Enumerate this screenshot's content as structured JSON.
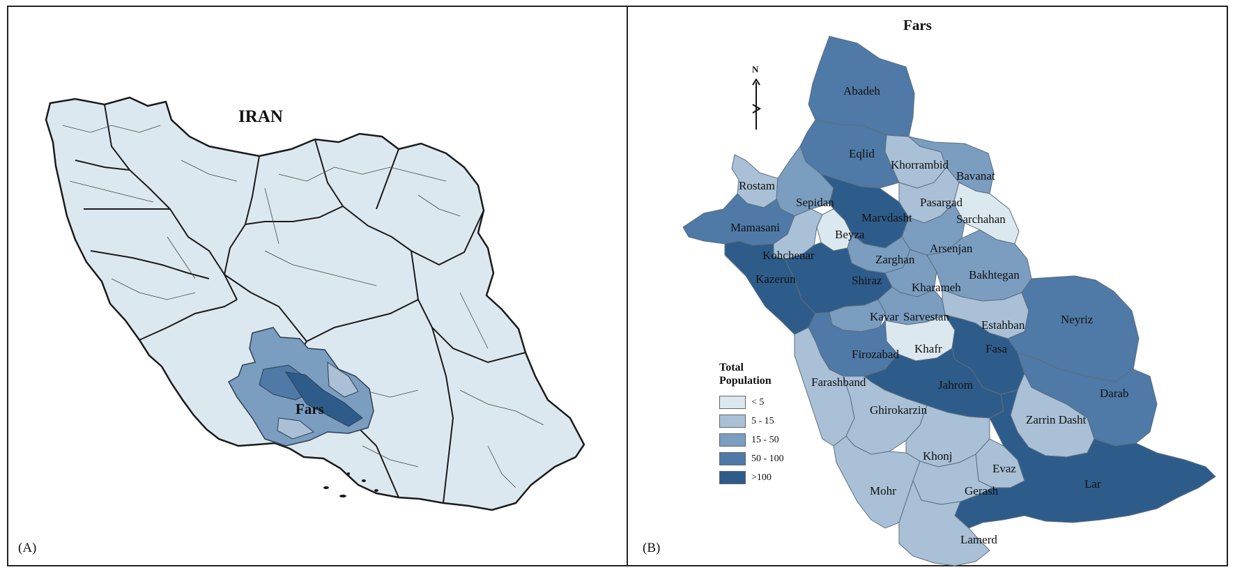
{
  "panel_a": {
    "label": "(A)",
    "title": "IRAN",
    "highlight_label": "Fars"
  },
  "panel_b": {
    "label": "(B)",
    "title": "Fars",
    "north_arrow": "north-arrow-icon"
  },
  "colors": {
    "pale": "#dce8ef",
    "light": "#a9c0d6",
    "mid": "#7a9dc0",
    "dark": "#4f79a6",
    "darkest": "#2e5c8a",
    "border": "#5b6f80"
  },
  "legend": {
    "title_line1": "Total",
    "title_line2": "Population",
    "items": [
      {
        "label": "< 5",
        "color": "#dce8ef"
      },
      {
        "label": "5 - 15",
        "color": "#a9c0d6"
      },
      {
        "label": "15 - 50",
        "color": "#7a9dc0"
      },
      {
        "label": "50 - 100",
        "color": "#4f79a6"
      },
      {
        "label": ">100",
        "color": "#2e5c8a"
      }
    ]
  },
  "districts": [
    {
      "name": "Abadeh",
      "class": 3
    },
    {
      "name": "Eqlid",
      "class": 3
    },
    {
      "name": "Khorrambid",
      "class": 1
    },
    {
      "name": "Bavanat",
      "class": 2
    },
    {
      "name": "Rostam",
      "class": 1
    },
    {
      "name": "Sepidan",
      "class": 2
    },
    {
      "name": "Pasargad",
      "class": 1
    },
    {
      "name": "Sarchahan",
      "class": 0
    },
    {
      "name": "Marvdasht",
      "class": 4
    },
    {
      "name": "Mamasani",
      "class": 3
    },
    {
      "name": "Beyza",
      "class": 0
    },
    {
      "name": "Arsenjan",
      "class": 2
    },
    {
      "name": "Kohchenar",
      "class": 1
    },
    {
      "name": "Zarghan",
      "class": 2
    },
    {
      "name": "Kazerun",
      "class": 4
    },
    {
      "name": "Shiraz",
      "class": 4
    },
    {
      "name": "Kharameh",
      "class": 2
    },
    {
      "name": "Bakhtegan",
      "class": 2
    },
    {
      "name": "Kavar",
      "class": 2
    },
    {
      "name": "Sarvestan",
      "class": 2
    },
    {
      "name": "Estahban",
      "class": 1
    },
    {
      "name": "Neyriz",
      "class": 3
    },
    {
      "name": "Khafr",
      "class": 0
    },
    {
      "name": "Fasa",
      "class": 4
    },
    {
      "name": "Firozabad",
      "class": 3
    },
    {
      "name": "Farashband",
      "class": 1
    },
    {
      "name": "Jahrom",
      "class": 4
    },
    {
      "name": "Darab",
      "class": 3
    },
    {
      "name": "Ghirokarzin",
      "class": 1
    },
    {
      "name": "Zarrin Dasht",
      "class": 1
    },
    {
      "name": "Khonj",
      "class": 1
    },
    {
      "name": "Evaz",
      "class": 1
    },
    {
      "name": "Lar",
      "class": 4
    },
    {
      "name": "Mohr",
      "class": 1
    },
    {
      "name": "Gerash",
      "class": 1
    },
    {
      "name": "Lamerd",
      "class": 1
    }
  ]
}
